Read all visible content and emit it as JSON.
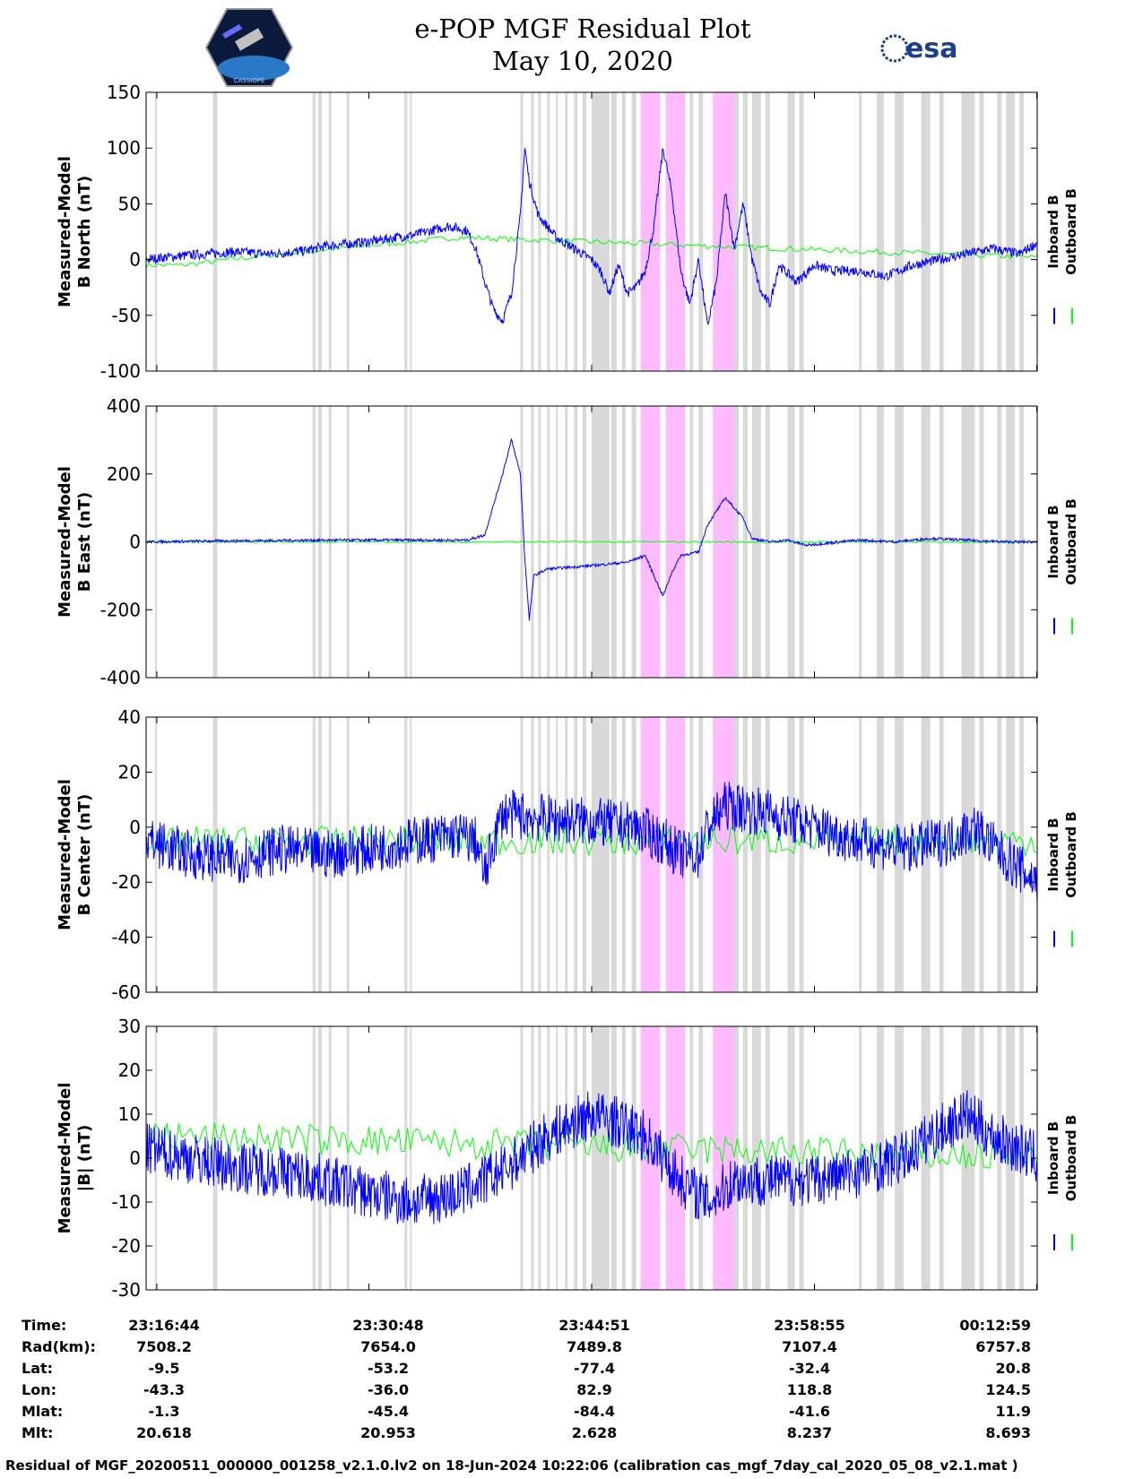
{
  "header": {
    "title": "e-POP MGF Residual Plot",
    "date": "May 10, 2020",
    "logo_left": "CASSIOPE",
    "logo_right": "esa"
  },
  "colors": {
    "inboard": "#0000ff",
    "outboard": "#00ff00",
    "gray_band": "#d9d9d9",
    "pink_band": "#ffbbff"
  },
  "chart_data": [
    {
      "type": "line",
      "ylabel": [
        "Measured-Model",
        "B North (nT)"
      ],
      "ylim": [
        -100,
        150
      ],
      "yticks": [
        "150",
        "100",
        "50",
        "0",
        "-50",
        "-100"
      ],
      "yvals": [
        150,
        100,
        50,
        0,
        -50,
        -100
      ],
      "legend": [
        "Inboard B",
        "Outboard B"
      ],
      "series_inboard": [
        [
          0,
          0
        ],
        [
          0.02,
          2
        ],
        [
          0.05,
          4
        ],
        [
          0.1,
          7
        ],
        [
          0.14,
          5
        ],
        [
          0.18,
          8
        ],
        [
          0.2,
          12
        ],
        [
          0.25,
          16
        ],
        [
          0.28,
          20
        ],
        [
          0.3,
          22
        ],
        [
          0.32,
          26
        ],
        [
          0.34,
          30
        ],
        [
          0.36,
          26
        ],
        [
          0.37,
          10
        ],
        [
          0.38,
          -20
        ],
        [
          0.39,
          -45
        ],
        [
          0.4,
          -55
        ],
        [
          0.41,
          -30
        ],
        [
          0.42,
          40
        ],
        [
          0.425,
          100
        ],
        [
          0.43,
          70
        ],
        [
          0.44,
          40
        ],
        [
          0.46,
          20
        ],
        [
          0.48,
          10
        ],
        [
          0.5,
          0
        ],
        [
          0.51,
          -10
        ],
        [
          0.52,
          -30
        ],
        [
          0.53,
          -5
        ],
        [
          0.54,
          -30
        ],
        [
          0.55,
          -25
        ],
        [
          0.56,
          -10
        ],
        [
          0.57,
          30
        ],
        [
          0.58,
          100
        ],
        [
          0.59,
          60
        ],
        [
          0.6,
          -10
        ],
        [
          0.61,
          -40
        ],
        [
          0.62,
          0
        ],
        [
          0.63,
          -60
        ],
        [
          0.64,
          -20
        ],
        [
          0.65,
          60
        ],
        [
          0.66,
          10
        ],
        [
          0.67,
          50
        ],
        [
          0.68,
          0
        ],
        [
          0.69,
          -30
        ],
        [
          0.7,
          -40
        ],
        [
          0.71,
          -5
        ],
        [
          0.73,
          -20
        ],
        [
          0.75,
          -5
        ],
        [
          0.77,
          -10
        ],
        [
          0.8,
          -10
        ],
        [
          0.83,
          -15
        ],
        [
          0.86,
          -5
        ],
        [
          0.89,
          0
        ],
        [
          0.92,
          5
        ],
        [
          0.95,
          10
        ],
        [
          0.98,
          5
        ],
        [
          1,
          15
        ]
      ],
      "series_outboard": [
        [
          0,
          -5
        ],
        [
          0.04,
          -5
        ],
        [
          0.15,
          5
        ],
        [
          0.35,
          20
        ],
        [
          1,
          2
        ]
      ]
    },
    {
      "type": "line",
      "ylabel": [
        "Measured-Model",
        "B East (nT)"
      ],
      "ylim": [
        -400,
        400
      ],
      "yticks": [
        "400",
        "200",
        "0",
        "-200",
        "-400"
      ],
      "yvals": [
        400,
        200,
        0,
        -200,
        -400
      ],
      "legend": [
        "Inboard B",
        "Outboard B"
      ],
      "series_inboard": [
        [
          0,
          0
        ],
        [
          0.1,
          3
        ],
        [
          0.2,
          5
        ],
        [
          0.3,
          5
        ],
        [
          0.36,
          5
        ],
        [
          0.38,
          20
        ],
        [
          0.4,
          200
        ],
        [
          0.41,
          300
        ],
        [
          0.42,
          200
        ],
        [
          0.425,
          -50
        ],
        [
          0.43,
          -230
        ],
        [
          0.435,
          -100
        ],
        [
          0.45,
          -80
        ],
        [
          0.5,
          -70
        ],
        [
          0.54,
          -60
        ],
        [
          0.56,
          -40
        ],
        [
          0.57,
          -100
        ],
        [
          0.58,
          -160
        ],
        [
          0.59,
          -90
        ],
        [
          0.6,
          -40
        ],
        [
          0.62,
          -30
        ],
        [
          0.63,
          50
        ],
        [
          0.65,
          130
        ],
        [
          0.66,
          100
        ],
        [
          0.67,
          70
        ],
        [
          0.68,
          10
        ],
        [
          0.7,
          0
        ],
        [
          0.72,
          5
        ],
        [
          0.74,
          -10
        ],
        [
          0.76,
          -5
        ],
        [
          0.8,
          5
        ],
        [
          0.84,
          0
        ],
        [
          0.88,
          10
        ],
        [
          0.92,
          5
        ],
        [
          0.96,
          0
        ],
        [
          1,
          0
        ]
      ],
      "series_outboard": [
        [
          0,
          0
        ],
        [
          0.05,
          0
        ],
        [
          1,
          0
        ]
      ]
    },
    {
      "type": "line",
      "ylabel": [
        "Measured-Model",
        "B Center (nT)"
      ],
      "ylim": [
        -60,
        40
      ],
      "yticks": [
        "40",
        "20",
        "0",
        "-20",
        "-40",
        "-60"
      ],
      "yvals": [
        40,
        20,
        0,
        -20,
        -40,
        -60
      ],
      "legend": [
        "Inboard B",
        "Outboard B"
      ],
      "series_inboard": [
        [
          0,
          -5
        ],
        [
          0.05,
          -10
        ],
        [
          0.1,
          -12
        ],
        [
          0.15,
          -8
        ],
        [
          0.2,
          -10
        ],
        [
          0.25,
          -8
        ],
        [
          0.3,
          -5
        ],
        [
          0.35,
          -3
        ],
        [
          0.37,
          -5
        ],
        [
          0.38,
          -18
        ],
        [
          0.39,
          -5
        ],
        [
          0.4,
          5
        ],
        [
          0.45,
          3
        ],
        [
          0.5,
          2
        ],
        [
          0.55,
          0
        ],
        [
          0.58,
          -5
        ],
        [
          0.6,
          -10
        ],
        [
          0.62,
          -10
        ],
        [
          0.63,
          0
        ],
        [
          0.65,
          8
        ],
        [
          0.7,
          5
        ],
        [
          0.75,
          0
        ],
        [
          0.8,
          -5
        ],
        [
          0.85,
          -8
        ],
        [
          0.9,
          -5
        ],
        [
          0.93,
          0
        ],
        [
          0.96,
          -10
        ],
        [
          1,
          -20
        ]
      ],
      "series_outboard": [
        [
          0,
          -5
        ],
        [
          0.02,
          -8
        ],
        [
          0.03,
          -5
        ],
        [
          1,
          -5
        ]
      ]
    },
    {
      "type": "line",
      "ylabel": [
        "Measured-Model",
        "|B| (nT)"
      ],
      "ylim": [
        -30,
        30
      ],
      "yticks": [
        "30",
        "20",
        "10",
        "0",
        "-10",
        "-20",
        "-30"
      ],
      "yvals": [
        30,
        20,
        10,
        0,
        -10,
        -20,
        -30
      ],
      "legend": [
        "Inboard B",
        "Outboard B"
      ],
      "series_inboard": [
        [
          0,
          2
        ],
        [
          0.05,
          0
        ],
        [
          0.1,
          -2
        ],
        [
          0.15,
          -3
        ],
        [
          0.2,
          -5
        ],
        [
          0.25,
          -8
        ],
        [
          0.3,
          -10
        ],
        [
          0.35,
          -8
        ],
        [
          0.4,
          -3
        ],
        [
          0.45,
          5
        ],
        [
          0.5,
          10
        ],
        [
          0.53,
          8
        ],
        [
          0.56,
          5
        ],
        [
          0.6,
          -5
        ],
        [
          0.63,
          -10
        ],
        [
          0.66,
          -5
        ],
        [
          0.7,
          -5
        ],
        [
          0.75,
          -5
        ],
        [
          0.8,
          -3
        ],
        [
          0.85,
          0
        ],
        [
          0.88,
          5
        ],
        [
          0.92,
          10
        ],
        [
          0.95,
          5
        ],
        [
          1,
          0
        ]
      ],
      "series_outboard": [
        [
          0,
          5
        ],
        [
          0.03,
          5
        ],
        [
          1,
          0
        ]
      ]
    }
  ],
  "shaded_regions": {
    "gray": [
      [
        0.01,
        0.012
      ],
      [
        0.075,
        0.08
      ],
      [
        0.187,
        0.19
      ],
      [
        0.193,
        0.197
      ],
      [
        0.205,
        0.208
      ],
      [
        0.225,
        0.228
      ],
      [
        0.29,
        0.293
      ],
      [
        0.296,
        0.298
      ],
      [
        0.42,
        0.423
      ],
      [
        0.432,
        0.435
      ],
      [
        0.44,
        0.443
      ],
      [
        0.45,
        0.453
      ],
      [
        0.46,
        0.462
      ],
      [
        0.47,
        0.473
      ],
      [
        0.48,
        0.484
      ],
      [
        0.49,
        0.494
      ],
      [
        0.5,
        0.52
      ],
      [
        0.522,
        0.528
      ],
      [
        0.534,
        0.538
      ],
      [
        0.545,
        0.55
      ],
      [
        0.59,
        0.6
      ],
      [
        0.61,
        0.614
      ],
      [
        0.62,
        0.625
      ],
      [
        0.66,
        0.665
      ],
      [
        0.67,
        0.675
      ],
      [
        0.68,
        0.69
      ],
      [
        0.695,
        0.7
      ],
      [
        0.72,
        0.728
      ],
      [
        0.733,
        0.738
      ],
      [
        0.8,
        0.803
      ],
      [
        0.82,
        0.828
      ],
      [
        0.84,
        0.85
      ],
      [
        0.87,
        0.88
      ],
      [
        0.89,
        0.895
      ],
      [
        0.915,
        0.93
      ],
      [
        0.935,
        0.94
      ],
      [
        0.955,
        0.96
      ],
      [
        0.965,
        0.975
      ],
      [
        0.98,
        0.985
      ]
    ],
    "pink": [
      [
        0.555,
        0.577
      ],
      [
        0.583,
        0.605
      ],
      [
        0.636,
        0.66
      ]
    ]
  },
  "time_axis": {
    "rows": [
      {
        "label": "Time:",
        "values": [
          "23:16:44",
          "23:30:48",
          "23:44:51",
          "23:58:55",
          "00:12:59"
        ]
      },
      {
        "label": "Rad(km):",
        "values": [
          "7508.2",
          "7654.0",
          "7489.8",
          "7107.4",
          "6757.8"
        ]
      },
      {
        "label": "Lat:",
        "values": [
          "-9.5",
          "-53.2",
          "-77.4",
          "-32.4",
          "20.8"
        ]
      },
      {
        "label": "Lon:",
        "values": [
          "-43.3",
          "-36.0",
          "82.9",
          "118.8",
          "124.5"
        ]
      },
      {
        "label": "Mlat:",
        "values": [
          "-1.3",
          "-45.4",
          "-84.4",
          "-41.6",
          "11.9"
        ]
      },
      {
        "label": "Mlt:",
        "values": [
          "20.618",
          "20.953",
          "2.628",
          "8.237",
          "8.693"
        ]
      }
    ]
  },
  "footer": "Residual of MGF_20200511_000000_001258_v2.1.0.lv2 on 18-Jun-2024 10:22:06 (calibration cas_mgf_7day_cal_2020_05_08_v2.1.mat )"
}
